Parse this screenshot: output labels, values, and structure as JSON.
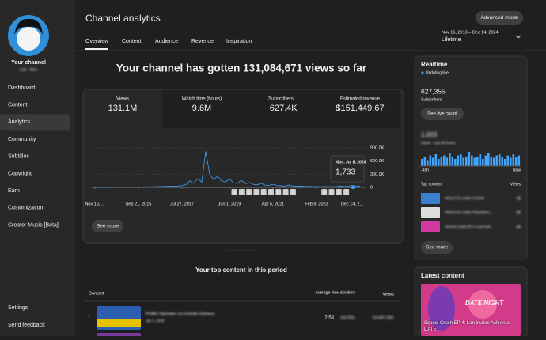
{
  "sidebar": {
    "channel_name": "Your channel",
    "channel_handle": "Lan · Ace",
    "menu": [
      "Dashboard",
      "Content",
      "Analytics",
      "Community",
      "Subtitles",
      "Copyright",
      "Earn",
      "Customization",
      "Creator Music [Beta]"
    ],
    "footer_menu": [
      "Settings",
      "Send feedback"
    ]
  },
  "header": {
    "title": "Channel analytics",
    "tabs": [
      "Overview",
      "Content",
      "Audience",
      "Revenue",
      "Inspiration"
    ],
    "advanced_mode": "Advanced mode",
    "date_range": "Nov 16, 2013 – Dec 14, 2024",
    "period": "Lifetime"
  },
  "headline": "Your channel has gotten 131,084,671 views so far",
  "metrics": [
    {
      "label": "Views",
      "value": "131.1M"
    },
    {
      "label": "Watch time (hours)",
      "value": "9.6M"
    },
    {
      "label": "Subscribers",
      "value": "+627.4K"
    },
    {
      "label": "Estimated revenue",
      "value": "$151,449.67"
    }
  ],
  "chart_data": {
    "type": "line",
    "color": "#3ea6ff",
    "values": [
      0,
      0,
      1000,
      2000,
      3000,
      4000,
      4000,
      5000,
      6000,
      6000,
      8000,
      9000,
      10000,
      12000,
      14000,
      16000,
      18000,
      20000,
      22000,
      25000,
      28000,
      30000,
      40000,
      60000,
      150000,
      90000,
      200000,
      120000,
      820000,
      300000,
      180000,
      250000,
      150000,
      120000,
      200000,
      100000,
      90000,
      160000,
      80000,
      110000,
      70000,
      60000,
      90000,
      50000,
      45000,
      70000,
      40000,
      35000,
      30000,
      50000,
      30000,
      25000,
      30000,
      20000,
      25000,
      20000,
      18000,
      15000,
      20000,
      15000,
      15000,
      18000,
      30000,
      20000,
      25000,
      45000,
      30000,
      25000
    ],
    "xlim": [
      0,
      67
    ],
    "xticks": [
      {
        "value": 0,
        "label": "Nov 16, ..."
      },
      {
        "value": 11,
        "label": "Sep 21, 2015"
      },
      {
        "value": 22,
        "label": "Jul 27, 2017"
      },
      {
        "value": 34,
        "label": "Jun 1, 2019"
      },
      {
        "value": 45,
        "label": "Apr 5, 2021"
      },
      {
        "value": 56,
        "label": "Feb 9, 2023"
      },
      {
        "value": 65,
        "label": "Dec 14, 2..."
      }
    ],
    "ylim": [
      0,
      900000
    ],
    "yticks": [
      0,
      {
        "value": 300000,
        "label": "300.0K"
      },
      {
        "value": 600000,
        "label": "600.0K"
      },
      {
        "value": 900000,
        "label": "900.0K"
      }
    ],
    "tooltip": {
      "date": "Mon, Jul 8, 2024",
      "value": "1,733"
    },
    "annotations": [
      "6",
      "6",
      "5",
      "6",
      "7",
      "5",
      "6",
      "7",
      "7",
      "5",
      "5",
      "6",
      "6"
    ]
  },
  "see_more": "See more",
  "top_content": {
    "title": "Your top content in this period",
    "columns": [
      "Content",
      "Average view duration",
      "Views"
    ],
    "rows": [
      [
        "1",
        "PUBG Operator vs Fortnite Gamers",
        "Jan 1, 2019",
        "2:58",
        "(53.2%)",
        "13,697,561"
      ]
    ]
  },
  "realtime": {
    "title": "Realtime",
    "status": "Updating live",
    "subscribers": "627,355",
    "subscribers_label": "Subscribers",
    "button": "See live count",
    "views": "1,003",
    "views_label": "Views · Last 48 hours",
    "bars": [
      6,
      8,
      5,
      9,
      7,
      10,
      6,
      8,
      9,
      7,
      11,
      8,
      6,
      9,
      10,
      7,
      8,
      12,
      9,
      7,
      8,
      10,
      6,
      9,
      11,
      8,
      7,
      9,
      10,
      8,
      6,
      9,
      7,
      10,
      8,
      9
    ],
    "start": "-48h",
    "end": "Now",
    "top_content": "Top content",
    "views_col": "Views",
    "items": [
      {
        "title": "What if EA made Fortnite",
        "views": "48"
      },
      {
        "title": "What if EA made Playstation...",
        "views": "45"
      },
      {
        "title": "School Crush EP 4: Lan invit...",
        "views": "44"
      }
    ],
    "see_more": "See more"
  },
  "latest": {
    "title": "Latest content",
    "video_title": "School Crush EP 4: Lan invites Ash on a DATE",
    "thumb_text": "DATE NIGHT"
  }
}
